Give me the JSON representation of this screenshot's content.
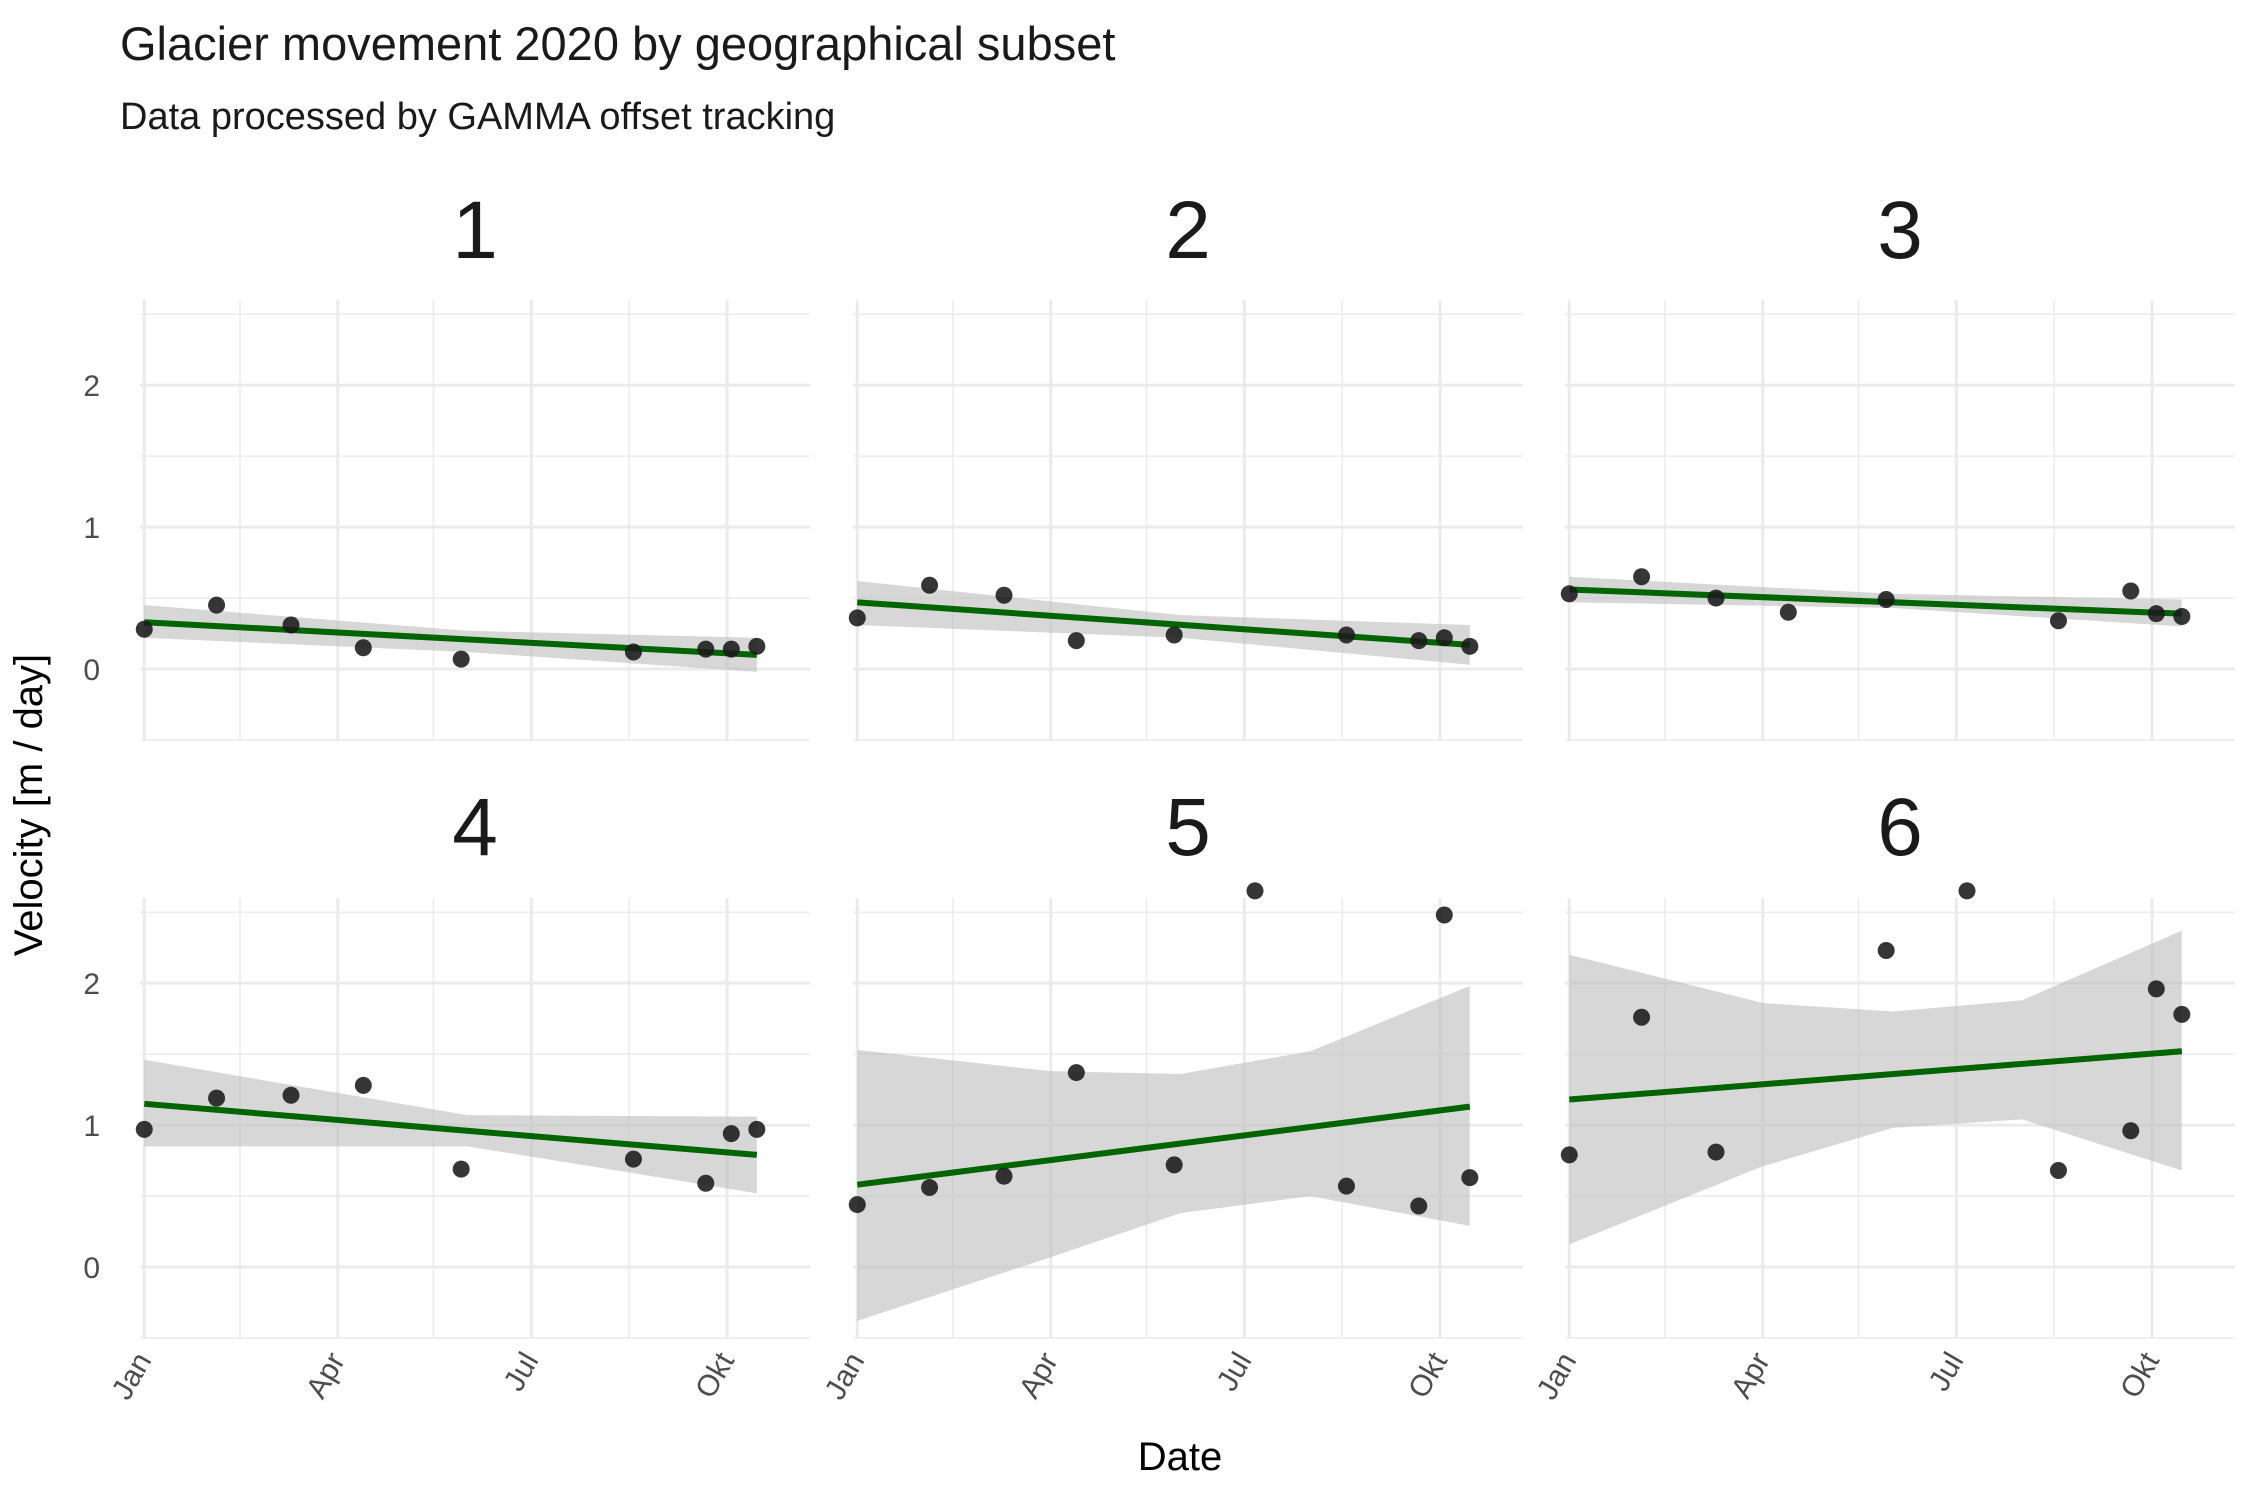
{
  "chart_data": {
    "type": "scatter",
    "title": "Glacier movement 2020 by geographical subset",
    "subtitle": "Data processed by GAMMA offset tracking",
    "xlabel": "Date",
    "ylabel": "Velocity [m / day]",
    "x_ticks": [
      "Jan",
      "Apr",
      "Jul",
      "Okt"
    ],
    "y_ticks": [
      0,
      1,
      2
    ],
    "x_range": [
      "2019-12-30",
      "2020-11-09"
    ],
    "ylim": [
      -0.5,
      2.6
    ],
    "grid": true,
    "colors": {
      "points": "#1a1a1a",
      "trend": "#006400",
      "ribbon": "#bebebe",
      "grid": "#ebebeb"
    },
    "facets": [
      {
        "label": "1",
        "points": [
          {
            "x": "2020-01-01",
            "y": 0.28
          },
          {
            "x": "2020-02-04",
            "y": 0.45
          },
          {
            "x": "2020-03-10",
            "y": 0.31
          },
          {
            "x": "2020-04-13",
            "y": 0.15
          },
          {
            "x": "2020-05-29",
            "y": 0.07
          },
          {
            "x": "2020-08-18",
            "y": 0.12
          },
          {
            "x": "2020-09-21",
            "y": 0.14
          },
          {
            "x": "2020-10-03",
            "y": 0.14
          },
          {
            "x": "2020-10-15",
            "y": 0.16
          }
        ],
        "trend": {
          "start": 0.33,
          "end": 0.1
        },
        "band": [
          {
            "x": "2020-01-01",
            "lo": 0.22,
            "hi": 0.45
          },
          {
            "x": "2020-06-01",
            "lo": 0.12,
            "hi": 0.27
          },
          {
            "x": "2020-10-15",
            "lo": -0.02,
            "hi": 0.22
          }
        ]
      },
      {
        "label": "2",
        "points": [
          {
            "x": "2020-01-01",
            "y": 0.36
          },
          {
            "x": "2020-02-04",
            "y": 0.59
          },
          {
            "x": "2020-03-10",
            "y": 0.52
          },
          {
            "x": "2020-04-13",
            "y": 0.2
          },
          {
            "x": "2020-05-29",
            "y": 0.24
          },
          {
            "x": "2020-08-18",
            "y": 0.24
          },
          {
            "x": "2020-09-21",
            "y": 0.2
          },
          {
            "x": "2020-10-03",
            "y": 0.22
          },
          {
            "x": "2020-10-15",
            "y": 0.16
          }
        ],
        "trend": {
          "start": 0.47,
          "end": 0.17
        },
        "band": [
          {
            "x": "2020-01-01",
            "lo": 0.31,
            "hi": 0.62
          },
          {
            "x": "2020-06-01",
            "lo": 0.22,
            "hi": 0.38
          },
          {
            "x": "2020-10-15",
            "lo": 0.03,
            "hi": 0.31
          }
        ]
      },
      {
        "label": "3",
        "points": [
          {
            "x": "2020-01-01",
            "y": 0.53
          },
          {
            "x": "2020-02-04",
            "y": 0.65
          },
          {
            "x": "2020-03-10",
            "y": 0.5
          },
          {
            "x": "2020-04-13",
            "y": 0.4
          },
          {
            "x": "2020-05-29",
            "y": 0.49
          },
          {
            "x": "2020-08-18",
            "y": 0.34
          },
          {
            "x": "2020-09-21",
            "y": 0.55
          },
          {
            "x": "2020-10-03",
            "y": 0.39
          },
          {
            "x": "2020-10-15",
            "y": 0.37
          }
        ],
        "trend": {
          "start": 0.56,
          "end": 0.39
        },
        "band": [
          {
            "x": "2020-01-01",
            "lo": 0.47,
            "hi": 0.65
          },
          {
            "x": "2020-06-01",
            "lo": 0.43,
            "hi": 0.53
          },
          {
            "x": "2020-10-15",
            "lo": 0.3,
            "hi": 0.49
          }
        ]
      },
      {
        "label": "4",
        "points": [
          {
            "x": "2020-01-01",
            "y": 0.97
          },
          {
            "x": "2020-02-04",
            "y": 1.19
          },
          {
            "x": "2020-03-10",
            "y": 1.21
          },
          {
            "x": "2020-04-13",
            "y": 1.28
          },
          {
            "x": "2020-05-29",
            "y": 0.69
          },
          {
            "x": "2020-08-18",
            "y": 0.76
          },
          {
            "x": "2020-09-21",
            "y": 0.59
          },
          {
            "x": "2020-10-03",
            "y": 0.94
          },
          {
            "x": "2020-10-15",
            "y": 0.97
          }
        ],
        "trend": {
          "start": 1.15,
          "end": 0.79
        },
        "band": [
          {
            "x": "2020-01-01",
            "lo": 0.85,
            "hi": 1.46
          },
          {
            "x": "2020-06-01",
            "lo": 0.85,
            "hi": 1.07
          },
          {
            "x": "2020-10-15",
            "lo": 0.52,
            "hi": 1.06
          }
        ]
      },
      {
        "label": "5",
        "points": [
          {
            "x": "2020-01-01",
            "y": 0.44
          },
          {
            "x": "2020-02-04",
            "y": 0.56
          },
          {
            "x": "2020-03-10",
            "y": 0.64
          },
          {
            "x": "2020-04-13",
            "y": 1.37
          },
          {
            "x": "2020-05-29",
            "y": 0.72
          },
          {
            "x": "2020-07-06",
            "y": 2.65
          },
          {
            "x": "2020-08-18",
            "y": 0.57
          },
          {
            "x": "2020-09-21",
            "y": 0.43
          },
          {
            "x": "2020-10-03",
            "y": 2.48
          },
          {
            "x": "2020-10-15",
            "y": 0.63
          }
        ],
        "trend": {
          "start": 0.58,
          "end": 1.13
        },
        "band": [
          {
            "x": "2020-01-01",
            "lo": -0.38,
            "hi": 1.53
          },
          {
            "x": "2020-04-01",
            "lo": 0.07,
            "hi": 1.38
          },
          {
            "x": "2020-06-01",
            "lo": 0.38,
            "hi": 1.36
          },
          {
            "x": "2020-08-01",
            "lo": 0.5,
            "hi": 1.52
          },
          {
            "x": "2020-10-15",
            "lo": 0.29,
            "hi": 1.98
          }
        ]
      },
      {
        "label": "6",
        "points": [
          {
            "x": "2020-01-01",
            "y": 0.79
          },
          {
            "x": "2020-02-04",
            "y": 1.76
          },
          {
            "x": "2020-03-10",
            "y": 0.81
          },
          {
            "x": "2020-05-29",
            "y": 2.23
          },
          {
            "x": "2020-07-06",
            "y": 2.65
          },
          {
            "x": "2020-08-18",
            "y": 0.68
          },
          {
            "x": "2020-09-21",
            "y": 0.96
          },
          {
            "x": "2020-10-03",
            "y": 1.96
          },
          {
            "x": "2020-10-15",
            "y": 1.78
          }
        ],
        "trend": {
          "start": 1.18,
          "end": 1.52
        },
        "band": [
          {
            "x": "2020-01-01",
            "lo": 0.16,
            "hi": 2.2
          },
          {
            "x": "2020-04-01",
            "lo": 0.71,
            "hi": 1.86
          },
          {
            "x": "2020-06-01",
            "lo": 0.98,
            "hi": 1.8
          },
          {
            "x": "2020-08-01",
            "lo": 1.04,
            "hi": 1.88
          },
          {
            "x": "2020-10-15",
            "lo": 0.68,
            "hi": 2.37
          }
        ]
      }
    ]
  }
}
